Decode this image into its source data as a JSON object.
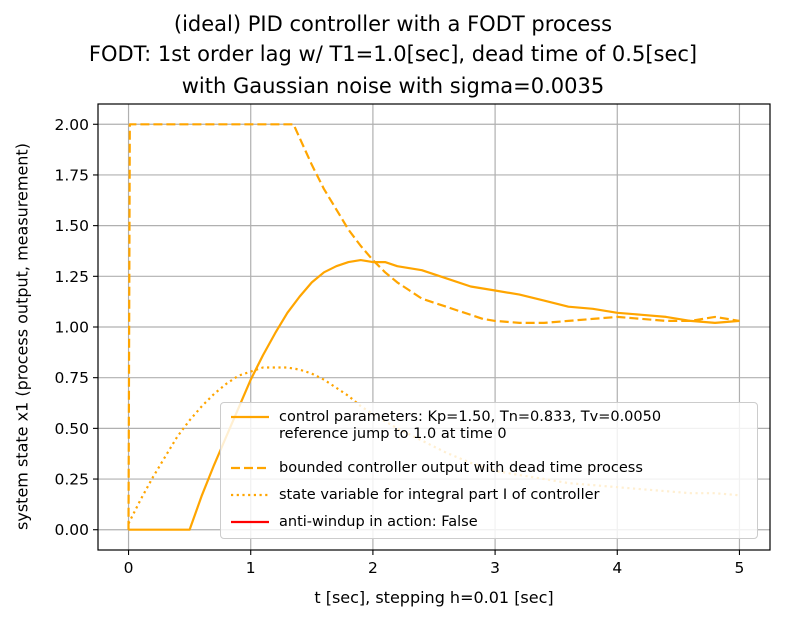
{
  "chart_data": {
    "type": "line",
    "title": "(ideal) PID controller with a FODT process",
    "subtitle_lines": [
      "FODT: 1st order lag w/ T1=1.0[sec], dead time of 0.5[sec]",
      "with Gaussian noise with sigma=0.0035"
    ],
    "xlabel": "t [sec], stepping h=0.01 [sec]",
    "ylabel": "system state x1 (process output, measurement)",
    "xlim": [
      -0.25,
      5.25
    ],
    "ylim": [
      -0.1,
      2.1
    ],
    "xticks": [
      0,
      1,
      2,
      3,
      4,
      5
    ],
    "xtick_labels": [
      "0",
      "1",
      "2",
      "3",
      "4",
      "5"
    ],
    "yticks": [
      0.0,
      0.25,
      0.5,
      0.75,
      1.0,
      1.25,
      1.5,
      1.75,
      2.0
    ],
    "ytick_labels": [
      "0.00",
      "0.25",
      "0.50",
      "0.75",
      "1.00",
      "1.25",
      "1.50",
      "1.75",
      "2.00"
    ],
    "grid": true,
    "legend_position": "lower right",
    "series": [
      {
        "name": "control parameters: Kp=1.50, Tn=0.833, Tv=0.0050\nreference jump to 1.0 at time 0",
        "color": "#ffa500",
        "style": "solid",
        "x": [
          0,
          0.5,
          0.6,
          0.7,
          0.8,
          0.9,
          1.0,
          1.1,
          1.2,
          1.3,
          1.4,
          1.5,
          1.6,
          1.7,
          1.8,
          1.9,
          2.0,
          2.1,
          2.2,
          2.4,
          2.6,
          2.8,
          3.0,
          3.2,
          3.4,
          3.6,
          3.8,
          4.0,
          4.2,
          4.4,
          4.6,
          4.8,
          5.0
        ],
        "y": [
          0,
          0,
          0.17,
          0.32,
          0.46,
          0.6,
          0.74,
          0.86,
          0.97,
          1.07,
          1.15,
          1.22,
          1.27,
          1.3,
          1.32,
          1.33,
          1.32,
          1.32,
          1.3,
          1.28,
          1.24,
          1.2,
          1.18,
          1.16,
          1.13,
          1.1,
          1.09,
          1.07,
          1.06,
          1.05,
          1.03,
          1.02,
          1.03
        ]
      },
      {
        "name": "bounded controller output with dead time process",
        "color": "#ffa500",
        "style": "dashed",
        "x": [
          0,
          0.01,
          1.35,
          1.5,
          1.6,
          1.7,
          1.8,
          1.9,
          2.0,
          2.1,
          2.2,
          2.3,
          2.4,
          2.5,
          2.6,
          2.7,
          2.8,
          2.9,
          3.0,
          3.2,
          3.4,
          3.6,
          3.8,
          4.0,
          4.2,
          4.4,
          4.6,
          4.8,
          5.0
        ],
        "y": [
          0,
          2.0,
          2.0,
          1.8,
          1.68,
          1.58,
          1.48,
          1.4,
          1.33,
          1.27,
          1.22,
          1.18,
          1.14,
          1.12,
          1.1,
          1.08,
          1.06,
          1.04,
          1.03,
          1.02,
          1.02,
          1.03,
          1.04,
          1.05,
          1.04,
          1.03,
          1.03,
          1.05,
          1.03
        ]
      },
      {
        "name": "state variable for integral part I of controller",
        "color": "#ffa500",
        "style": "dotted",
        "x": [
          0,
          0.1,
          0.2,
          0.3,
          0.4,
          0.5,
          0.6,
          0.7,
          0.8,
          0.9,
          1.0,
          1.1,
          1.2,
          1.3,
          1.4,
          1.5,
          1.6,
          1.7,
          1.8,
          1.9,
          2.0,
          2.2,
          2.4,
          2.6,
          2.8,
          3.0,
          3.2,
          3.4,
          3.6,
          3.8,
          4.0,
          4.2,
          4.4,
          4.6,
          4.8,
          5.0
        ],
        "y": [
          0.03,
          0.15,
          0.26,
          0.36,
          0.46,
          0.54,
          0.61,
          0.67,
          0.72,
          0.76,
          0.78,
          0.8,
          0.8,
          0.8,
          0.79,
          0.77,
          0.74,
          0.7,
          0.66,
          0.61,
          0.57,
          0.5,
          0.44,
          0.38,
          0.33,
          0.29,
          0.27,
          0.25,
          0.23,
          0.22,
          0.21,
          0.2,
          0.19,
          0.18,
          0.18,
          0.17
        ]
      },
      {
        "name": "anti-windup in action: False",
        "color": "#ff0000",
        "style": "solid",
        "x": [],
        "y": []
      }
    ]
  }
}
